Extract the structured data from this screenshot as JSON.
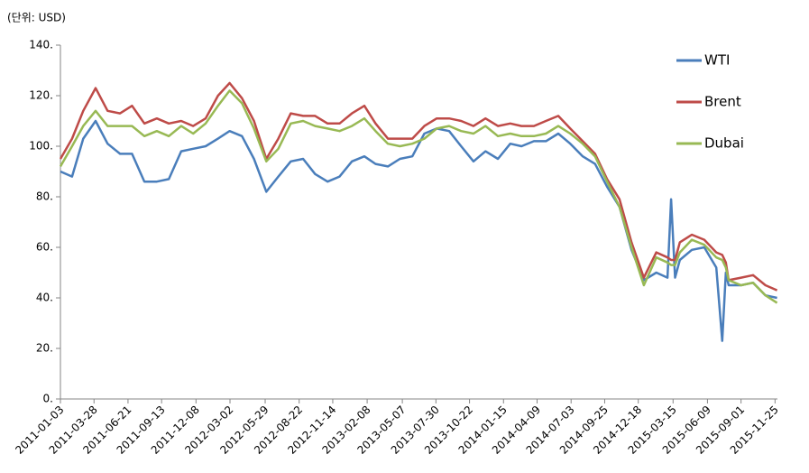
{
  "chart_data": {
    "type": "line",
    "unit_label": "(단위: USD)",
    "x": [
      "2011-01-03",
      "2011-02-01",
      "2011-03-01",
      "2011-04-01",
      "2011-05-01",
      "2011-06-01",
      "2011-07-01",
      "2011-08-01",
      "2011-09-01",
      "2011-10-01",
      "2011-11-01",
      "2011-12-01",
      "2012-01-01",
      "2012-02-01",
      "2012-03-01",
      "2012-04-01",
      "2012-05-01",
      "2012-06-01",
      "2012-07-01",
      "2012-08-01",
      "2012-09-01",
      "2012-10-01",
      "2012-11-01",
      "2012-12-01",
      "2013-01-01",
      "2013-02-01",
      "2013-03-01",
      "2013-04-01",
      "2013-05-01",
      "2013-06-01",
      "2013-07-01",
      "2013-08-01",
      "2013-09-01",
      "2013-10-01",
      "2013-11-01",
      "2013-12-01",
      "2014-01-01",
      "2014-02-01",
      "2014-03-01",
      "2014-04-01",
      "2014-05-01",
      "2014-06-01",
      "2014-07-01",
      "2014-08-01",
      "2014-09-01",
      "2014-10-01",
      "2014-11-01",
      "2014-12-01",
      "2015-01-01",
      "2015-02-01",
      "2015-03-01",
      "2015-03-10",
      "2015-03-20",
      "2015-04-01",
      "2015-05-01",
      "2015-06-01",
      "2015-07-01",
      "2015-07-16",
      "2015-07-25",
      "2015-08-01",
      "2015-09-01",
      "2015-10-01",
      "2015-11-01",
      "2015-11-30"
    ],
    "series": [
      {
        "name": "WTI",
        "color": "#4a7ebb",
        "values": [
          90,
          88,
          103,
          110,
          101,
          97,
          97,
          86,
          86,
          87,
          98,
          99,
          100,
          103,
          106,
          104,
          95,
          82,
          88,
          94,
          95,
          89,
          86,
          88,
          94,
          96,
          93,
          92,
          95,
          96,
          105,
          107,
          106,
          100,
          94,
          98,
          95,
          101,
          100,
          102,
          102,
          105,
          101,
          96,
          93,
          84,
          76,
          59,
          47,
          50,
          48,
          79,
          48,
          55,
          59,
          60,
          52,
          23,
          50,
          45,
          45,
          46,
          41,
          40
        ]
      },
      {
        "name": "Brent",
        "color": "#be4b48",
        "values": [
          95,
          103,
          114,
          123,
          114,
          113,
          116,
          109,
          111,
          109,
          110,
          108,
          111,
          120,
          125,
          119,
          110,
          95,
          103,
          113,
          112,
          112,
          109,
          109,
          113,
          116,
          109,
          103,
          103,
          103,
          108,
          111,
          111,
          110,
          108,
          111,
          108,
          109,
          108,
          108,
          110,
          112,
          107,
          102,
          97,
          87,
          79,
          62,
          48,
          58,
          56,
          55,
          55,
          62,
          65,
          63,
          58,
          57,
          54,
          47,
          48,
          49,
          45,
          43
        ]
      },
      {
        "name": "Dubai",
        "color": "#98b954",
        "values": [
          92,
          100,
          108,
          114,
          108,
          108,
          108,
          104,
          106,
          104,
          108,
          105,
          109,
          116,
          122,
          117,
          107,
          94,
          99,
          109,
          110,
          108,
          107,
          106,
          108,
          111,
          106,
          101,
          100,
          101,
          103,
          107,
          108,
          106,
          105,
          108,
          104,
          105,
          104,
          104,
          105,
          108,
          105,
          101,
          96,
          86,
          76,
          60,
          45,
          56,
          54,
          53,
          53,
          58,
          63,
          61,
          56,
          55,
          52,
          47,
          45,
          46,
          41,
          38
        ]
      }
    ],
    "xlim": [
      "2011-01-03",
      "2015-12-01"
    ],
    "xticks": [
      "2011-01-03",
      "2011-03-28",
      "2011-06-21",
      "2011-09-13",
      "2011-12-08",
      "2012-03-02",
      "2012-05-29",
      "2012-08-22",
      "2012-11-14",
      "2013-02-08",
      "2013-05-07",
      "2013-07-30",
      "2013-10-22",
      "2014-01-15",
      "2014-04-09",
      "2014-07-03",
      "2014-09-25",
      "2014-12-18",
      "2015-03-15",
      "2015-06-09",
      "2015-09-01",
      "2015-11-25"
    ],
    "ylim": [
      0,
      140
    ],
    "yticks": [
      {
        "value": 0,
        "label": "0."
      },
      {
        "value": 20,
        "label": "20."
      },
      {
        "value": 40,
        "label": "40."
      },
      {
        "value": 60,
        "label": "60."
      },
      {
        "value": 80,
        "label": "80."
      },
      {
        "value": 100,
        "label": "100."
      },
      {
        "value": 120,
        "label": "120."
      },
      {
        "value": 140,
        "label": "140."
      }
    ],
    "grid": false,
    "legend": "upper right"
  }
}
